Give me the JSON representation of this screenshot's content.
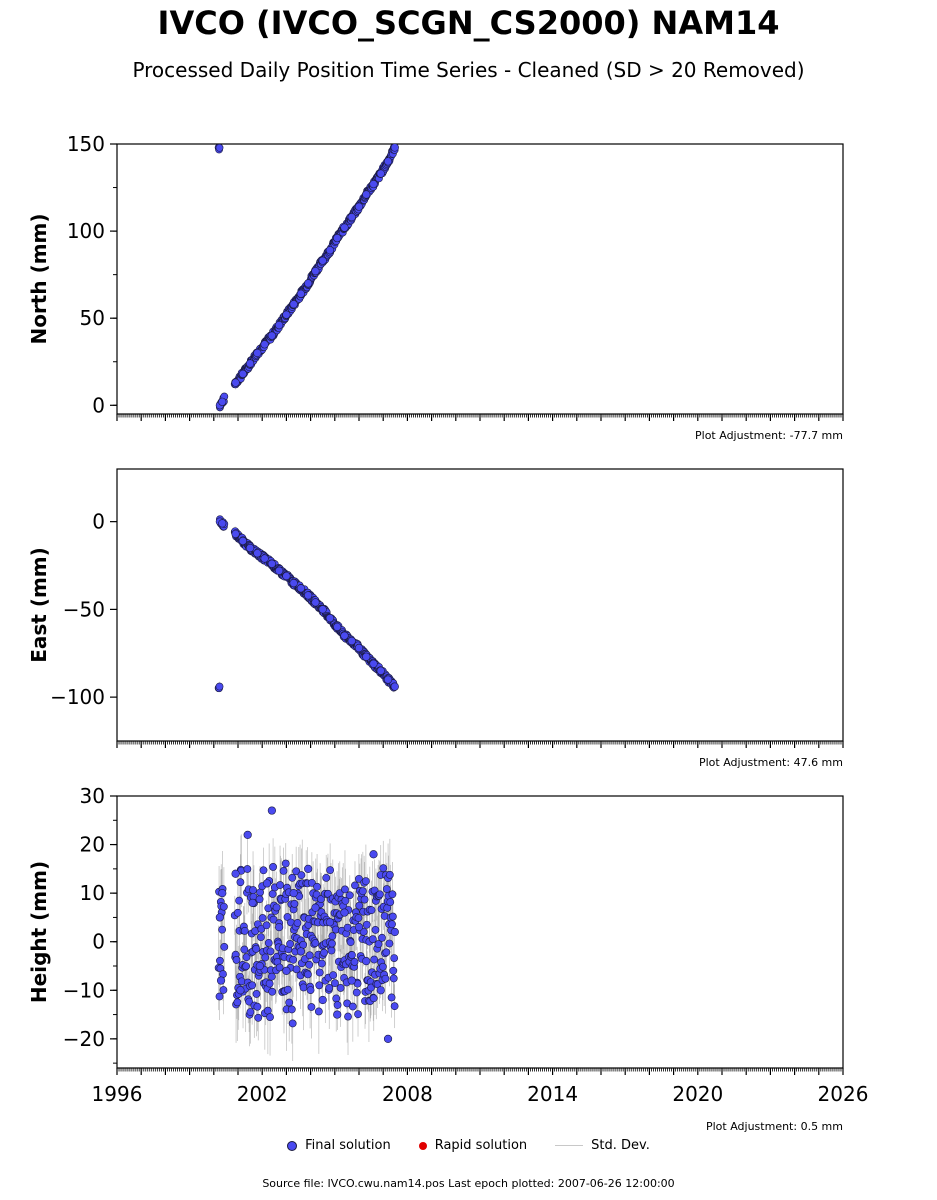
{
  "header": {
    "title": "IVCO (IVCO_SCGN_CS2000) NAM14",
    "subtitle": "Processed Daily Position Time Series - Cleaned (SD > 20 Removed)"
  },
  "legend": {
    "final": "Final solution",
    "rapid": "Rapid solution",
    "stddev": "Std. Dev."
  },
  "footer": "Source file: IVCO.cwu.nam14.pos  Last epoch plotted: 2007-06-26 12:00:00",
  "colors": {
    "final": "#4a4af0",
    "rapid": "#e00000",
    "stddev": "#c8c8c8",
    "marker_edge": "#1a1a40"
  },
  "chart_data": [
    {
      "type": "scatter",
      "ylabel": "North (mm)",
      "xlim": [
        1996,
        2026
      ],
      "ylim": [
        -5,
        150
      ],
      "yticks": [
        0,
        50,
        100,
        150
      ],
      "xticks": [
        1996,
        2002,
        2008,
        2014,
        2020,
        2026
      ],
      "xticklabels": [
        "",
        "",
        "",
        "",
        "",
        ""
      ],
      "adjustment": "Plot Adjustment: -77.7 mm",
      "series": [
        {
          "name": "Final solution",
          "x": [
            2000.25,
            2000.35,
            2000.9,
            2001.2,
            2001.5,
            2001.8,
            2002.1,
            2002.4,
            2002.7,
            2003.0,
            2003.3,
            2003.6,
            2003.9,
            2004.2,
            2004.5,
            2004.8,
            2005.1,
            2005.4,
            2005.7,
            2006.0,
            2006.3,
            2006.6,
            2006.9,
            2007.2,
            2007.48
          ],
          "y": [
            0,
            2,
            13,
            18,
            24,
            30,
            35,
            40,
            46,
            52,
            58,
            64,
            70,
            77,
            83,
            89,
            96,
            102,
            108,
            114,
            121,
            127,
            133,
            140,
            148
          ]
        }
      ]
    },
    {
      "type": "scatter",
      "ylabel": "East (mm)",
      "xlim": [
        1996,
        2026
      ],
      "ylim": [
        -125,
        30
      ],
      "yticks": [
        0,
        -50,
        -100
      ],
      "xticks": [
        1996,
        2002,
        2008,
        2014,
        2020,
        2026
      ],
      "xticklabels": [
        "",
        "",
        "",
        "",
        "",
        ""
      ],
      "adjustment": "Plot Adjustment: 47.6 mm",
      "series": [
        {
          "name": "Final solution",
          "x": [
            2000.25,
            2000.35,
            2000.9,
            2001.2,
            2001.5,
            2001.8,
            2002.1,
            2002.4,
            2002.7,
            2003.0,
            2003.3,
            2003.6,
            2003.9,
            2004.2,
            2004.5,
            2004.8,
            2005.1,
            2005.4,
            2005.7,
            2006.0,
            2006.3,
            2006.6,
            2006.9,
            2007.2,
            2007.48
          ],
          "y": [
            0,
            -1,
            -7,
            -11,
            -15,
            -18,
            -21,
            -24,
            -28,
            -31,
            -35,
            -38,
            -42,
            -46,
            -50,
            -55,
            -60,
            -65,
            -68,
            -72,
            -77,
            -81,
            -85,
            -90,
            -94
          ]
        }
      ]
    },
    {
      "type": "scatter",
      "ylabel": "Height (mm)",
      "xlim": [
        1996,
        2026
      ],
      "ylim": [
        -26,
        30
      ],
      "yticks": [
        -20,
        -10,
        0,
        10,
        20,
        30
      ],
      "xticks": [
        1996,
        2002,
        2008,
        2014,
        2020,
        2026
      ],
      "xticklabels": [
        "1996",
        "2002",
        "2008",
        "2014",
        "2020",
        "2026"
      ],
      "adjustment": "Plot Adjustment: 0.5 mm",
      "series": [
        {
          "name": "Final solution",
          "x": [
            2000.25,
            2000.3,
            2000.35,
            2000.9,
            2001.1,
            2001.4,
            2001.6,
            2001.9,
            2002.2,
            2002.4,
            2002.7,
            2003.0,
            2003.3,
            2003.6,
            2003.9,
            2004.2,
            2004.5,
            2004.8,
            2005.1,
            2005.4,
            2005.7,
            2006.0,
            2006.3,
            2006.6,
            2006.9,
            2007.2,
            2007.48
          ],
          "y": [
            5,
            -8,
            10,
            14,
            -10,
            22,
            8,
            -5,
            12,
            27,
            3,
            -6,
            10,
            -2,
            15,
            7,
            -12,
            4,
            -15,
            6,
            -8,
            3,
            -4,
            18,
            -10,
            -20,
            2
          ]
        }
      ]
    }
  ]
}
